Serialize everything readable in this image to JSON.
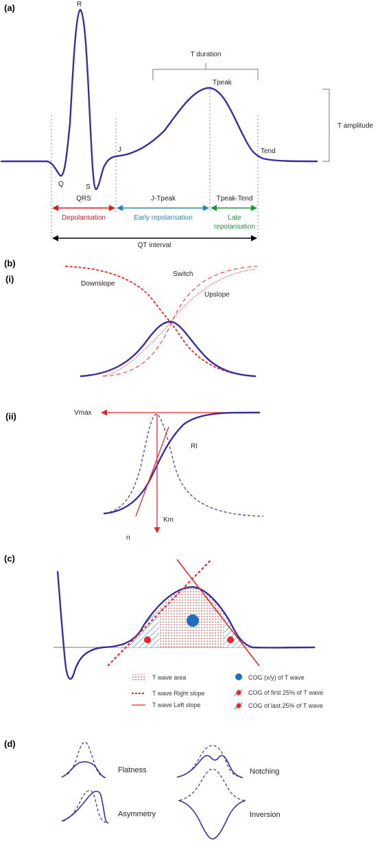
{
  "panels": {
    "a": {
      "label": "(a)",
      "points": {
        "r": "R",
        "q": "Q",
        "s": "S",
        "j": "J",
        "tpeak": "Tpeak",
        "tend": "Tend"
      },
      "t_duration": "T duration",
      "t_amplitude": "T amplitude",
      "segments": {
        "qrs": "QRS",
        "j_tpeak": "J-Tpeak",
        "tpeak_tend": "Tpeak-Tend"
      },
      "phases": {
        "depolarisation": "Depolarisation",
        "early": "Early repolarisation",
        "late_1": "Late",
        "late_2": "repolarisation"
      },
      "qt_interval": "QT interval",
      "colors": {
        "depolarisation": "#d7191c",
        "early": "#2b83ba",
        "late": "#1a9641",
        "wave": "#3a2d9a"
      }
    },
    "b": {
      "label": "(b)",
      "i": {
        "label": "(i)",
        "downslope": "Downslope",
        "switch": "Switch",
        "upslope": "Upslope"
      },
      "ii": {
        "label": "(ii)",
        "vmax": "Vmax",
        "rl": "Rl",
        "km": "Km",
        "n": "n"
      }
    },
    "c": {
      "label": "(c)",
      "legend": {
        "area": "T wave area",
        "right_slope": "T wave Right slope",
        "left_slope": "T wave Left slope",
        "cog": "COG (x/y) of T wave",
        "cog_first": "COG of first 25% of T wave",
        "cog_last": "COG of last 25% of T wave"
      },
      "colors": {
        "red": "#e8262a",
        "blue": "#1f6fbf"
      }
    },
    "d": {
      "label": "(d)",
      "flatness": "Flatness",
      "notching": "Notching",
      "asymmetry": "Asymmetry",
      "inversion": "Inversion"
    }
  }
}
